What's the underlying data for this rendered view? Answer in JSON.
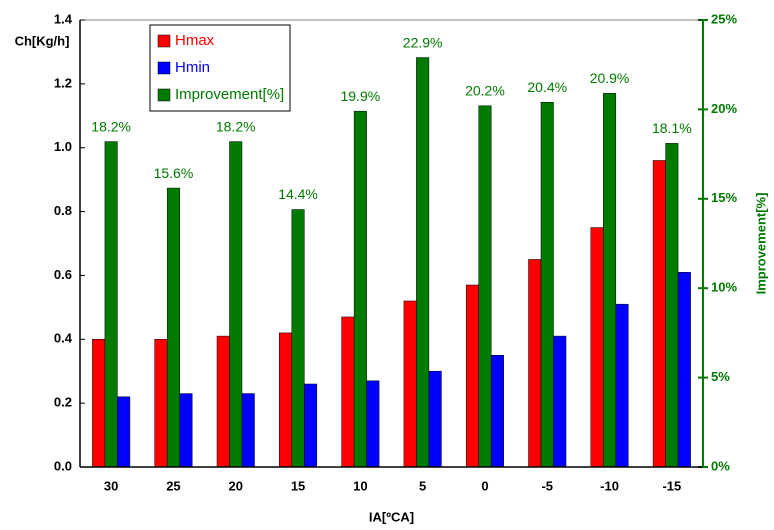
{
  "chart_data": {
    "type": "bar",
    "x_label": "IA[ºCA]",
    "y_label": "Ch[Kg/h]",
    "y2_label": "Improvement[%]",
    "categories": [
      "30",
      "25",
      "20",
      "15",
      "10",
      "5",
      "0",
      "-5",
      "-10",
      "-15"
    ],
    "series": [
      {
        "name": "Hmax",
        "color": "#ff0000",
        "values": [
          0.4,
          0.4,
          0.41,
          0.42,
          0.47,
          0.52,
          0.57,
          0.65,
          0.75,
          0.96
        ]
      },
      {
        "name": "Improvement[%]",
        "color": "#007a00",
        "axis": "y2",
        "values": [
          18.2,
          15.6,
          18.2,
          14.4,
          19.9,
          22.9,
          20.2,
          20.4,
          20.9,
          18.1
        ],
        "value_labels": [
          "18.2%",
          "15.6%",
          "18.2%",
          "14.4%",
          "19.9%",
          "22.9%",
          "20.2%",
          "20.4%",
          "20.9%",
          "18.1%"
        ]
      },
      {
        "name": "Hmin",
        "color": "#0000ff",
        "values": [
          0.22,
          0.23,
          0.23,
          0.26,
          0.27,
          0.3,
          0.35,
          0.41,
          0.51,
          0.61
        ]
      }
    ],
    "legend_order": [
      0,
      2,
      1
    ],
    "ylim": [
      0,
      1.4
    ],
    "yticks": [
      {
        "value": 0,
        "label": "0.0"
      },
      0.2,
      0.4,
      0.6,
      0.8,
      {
        "value": 1,
        "label": "1.0"
      },
      1.2,
      1.4
    ],
    "y2lim": [
      0,
      25
    ],
    "y2ticks": [
      {
        "value": 0,
        "label": "0%"
      },
      {
        "value": 5,
        "label": "5%"
      },
      {
        "value": 10,
        "label": "10%"
      },
      {
        "value": 15,
        "label": "15%"
      },
      {
        "value": 20,
        "label": "20%"
      },
      {
        "value": 25,
        "label": "25%"
      }
    ],
    "legend": "upper left"
  }
}
